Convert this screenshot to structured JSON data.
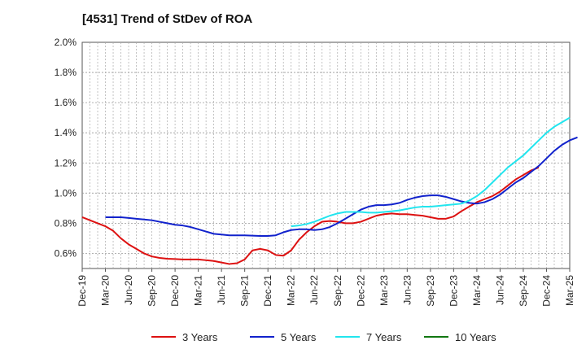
{
  "chart_data": {
    "type": "line",
    "title": "[4531]  Trend of StDev of ROA",
    "xlabel": "",
    "ylabel": "",
    "y_ticks": [
      "0.6%",
      "0.8%",
      "1.0%",
      "1.2%",
      "1.4%",
      "1.6%",
      "1.8%",
      "2.0%"
    ],
    "ylim": [
      0.5,
      2.0
    ],
    "x_ticks": [
      "Dec-19",
      "Mar-20",
      "Jun-20",
      "Sep-20",
      "Dec-20",
      "Mar-21",
      "Jun-21",
      "Sep-21",
      "Dec-21",
      "Mar-22",
      "Jun-22",
      "Sep-22",
      "Dec-22",
      "Mar-23",
      "Jun-23",
      "Sep-23",
      "Dec-23",
      "Mar-24",
      "Jun-24",
      "Sep-24",
      "Dec-24",
      "Mar-25"
    ],
    "grid": true,
    "legend_position": "bottom",
    "series": [
      {
        "name": "3 Years",
        "color": "#dd1111",
        "start_index": 0,
        "values": [
          0.84,
          0.82,
          0.8,
          0.78,
          0.75,
          0.7,
          0.66,
          0.63,
          0.6,
          0.58,
          0.57,
          0.565,
          0.563,
          0.56,
          0.56,
          0.56,
          0.555,
          0.55,
          0.54,
          0.53,
          0.535,
          0.56,
          0.62,
          0.63,
          0.62,
          0.59,
          0.585,
          0.62,
          0.69,
          0.74,
          0.78,
          0.81,
          0.815,
          0.81,
          0.8,
          0.8,
          0.81,
          0.83,
          0.85,
          0.86,
          0.865,
          0.86,
          0.86,
          0.855,
          0.85,
          0.84,
          0.83,
          0.83,
          0.845,
          0.88,
          0.91,
          0.94,
          0.96,
          0.98,
          1.01,
          1.05,
          1.09,
          1.12,
          1.15,
          1.17
        ]
      },
      {
        "name": "5 Years",
        "color": "#1122cc",
        "start_index": 3,
        "values": [
          0.84,
          0.84,
          0.84,
          0.835,
          0.83,
          0.825,
          0.82,
          0.81,
          0.8,
          0.79,
          0.785,
          0.775,
          0.76,
          0.745,
          0.73,
          0.725,
          0.72,
          0.72,
          0.72,
          0.718,
          0.716,
          0.716,
          0.72,
          0.74,
          0.755,
          0.76,
          0.76,
          0.755,
          0.76,
          0.775,
          0.8,
          0.83,
          0.86,
          0.89,
          0.91,
          0.92,
          0.92,
          0.925,
          0.935,
          0.955,
          0.97,
          0.98,
          0.985,
          0.985,
          0.975,
          0.96,
          0.945,
          0.935,
          0.93,
          0.94,
          0.96,
          0.99,
          1.03,
          1.07,
          1.1,
          1.14,
          1.18,
          1.23,
          1.28,
          1.32,
          1.35,
          1.37
        ]
      },
      {
        "name": "7 Years",
        "color": "#22e5ee",
        "start_index": 27,
        "values": [
          0.78,
          0.785,
          0.795,
          0.81,
          0.83,
          0.85,
          0.865,
          0.875,
          0.875,
          0.875,
          0.87,
          0.87,
          0.875,
          0.88,
          0.885,
          0.895,
          0.905,
          0.91,
          0.91,
          0.915,
          0.92,
          0.925,
          0.93,
          0.95,
          0.98,
          1.02,
          1.07,
          1.12,
          1.17,
          1.21,
          1.25,
          1.3,
          1.35,
          1.4,
          1.44,
          1.47,
          1.5
        ]
      },
      {
        "name": "10 Years",
        "color": "#117711",
        "start_index": 0,
        "values": []
      }
    ]
  }
}
